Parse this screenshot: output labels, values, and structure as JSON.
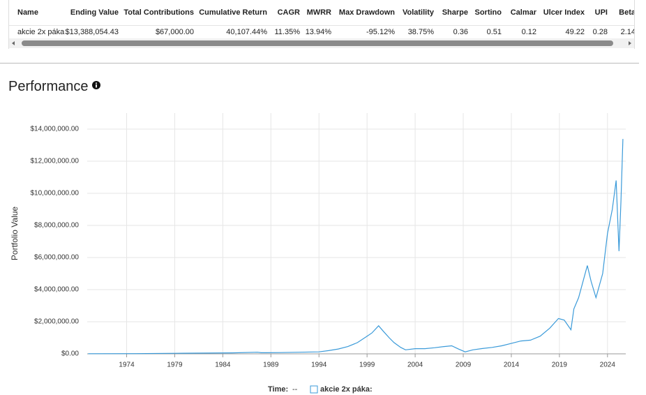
{
  "table": {
    "headers": [
      "Name",
      "Ending Value",
      "Total Contributions",
      "Cumulative Return",
      "CAGR",
      "MWRR",
      "Max Drawdown",
      "Volatility",
      "Sharpe",
      "Sortino",
      "Calmar",
      "Ulcer Index",
      "UPI",
      "Beta"
    ],
    "rows": [
      [
        "akcie 2x páka",
        "$13,388,054.43",
        "$67,000.00",
        "40,107.44%",
        "11.35%",
        "13.94%",
        "-95.12%",
        "38.75%",
        "0.36",
        "0.51",
        "0.12",
        "49.22",
        "0.28",
        "2.14"
      ]
    ]
  },
  "section_title": "Performance",
  "chart_data": {
    "type": "line",
    "y_label": "Portfolio Value",
    "color": "#3a9ad9",
    "grid": true,
    "x": [
      1970,
      1975,
      1980,
      1985,
      1987.6,
      1988,
      1990,
      1994,
      1995,
      1996,
      1997,
      1998,
      1999,
      1999.5,
      2000.2,
      2000.7,
      2001.3,
      2001.8,
      2002.5,
      2003,
      2004,
      2005,
      2006,
      2007,
      2007.8,
      2008.5,
      2009.2,
      2010,
      2011,
      2012,
      2013,
      2014,
      2015,
      2016,
      2017,
      2018,
      2018.9,
      2019.5,
      2020.2,
      2020.5,
      2021,
      2021.9,
      2022.3,
      2022.8,
      2023.5,
      2024,
      2024.5,
      2024.9,
      2025.2,
      2025.4,
      2025.6
    ],
    "values": [
      10000,
      15000,
      40000,
      60000,
      100000,
      70000,
      80000,
      120000,
      200000,
      300000,
      450000,
      700000,
      1100000,
      1300000,
      1750000,
      1400000,
      1000000,
      700000,
      400000,
      250000,
      320000,
      320000,
      380000,
      450000,
      500000,
      300000,
      120000,
      250000,
      330000,
      400000,
      500000,
      650000,
      800000,
      850000,
      1100000,
      1600000,
      2200000,
      2100000,
      1500000,
      2800000,
      3500000,
      5500000,
      4500000,
      3500000,
      5000000,
      7500000,
      9000000,
      10800000,
      6400000,
      9500000,
      13388054.43
    ],
    "xlim": [
      1969.9,
      2025.9
    ],
    "ylim": [
      0,
      15000000
    ],
    "xticks": [
      1974,
      1979,
      1984,
      1989,
      1994,
      1999,
      2004,
      2009,
      2014,
      2019,
      2024
    ],
    "yticks": [
      {
        "value": 0,
        "label": "$0.00"
      },
      {
        "value": 2000000,
        "label": "$2,000,000.00"
      },
      {
        "value": 4000000,
        "label": "$4,000,000.00"
      },
      {
        "value": 6000000,
        "label": "$6,000,000.00"
      },
      {
        "value": 8000000,
        "label": "$8,000,000.00"
      },
      {
        "value": 10000000,
        "label": "$10,000,000.00"
      },
      {
        "value": 12000000,
        "label": "$12,000,000.00"
      },
      {
        "value": 14000000,
        "label": "$14,000,000.00"
      }
    ],
    "legend": {
      "time_label": "Time:",
      "time_value": "--",
      "series_label": "akcie 2x páka:"
    }
  }
}
